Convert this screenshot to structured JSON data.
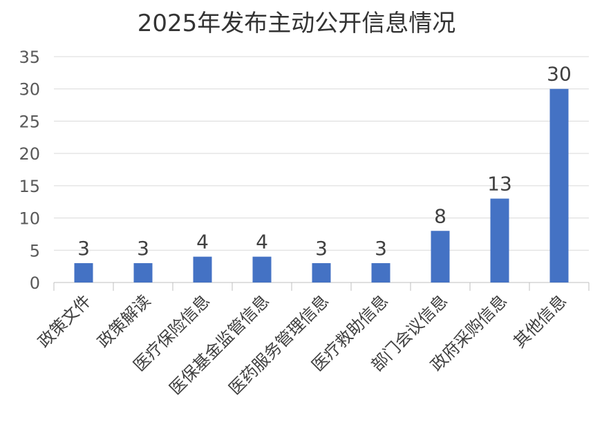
{
  "chart_data": {
    "type": "bar",
    "title": "2025年发布主动公开信息情况",
    "categories": [
      "政策文件",
      "政策解读",
      "医疗保险信息",
      "医保基金监管信息",
      "医药服务管理信息",
      "医疗救助信息",
      "部门会议信息",
      "政府采购信息",
      "其他信息"
    ],
    "values": [
      3,
      3,
      4,
      4,
      3,
      3,
      8,
      13,
      30
    ],
    "ylim": [
      0,
      35
    ],
    "yticks": [
      0,
      5,
      10,
      15,
      20,
      25,
      30,
      35
    ],
    "grid": true,
    "data_labels": true,
    "bar_color": "#4472c4"
  }
}
